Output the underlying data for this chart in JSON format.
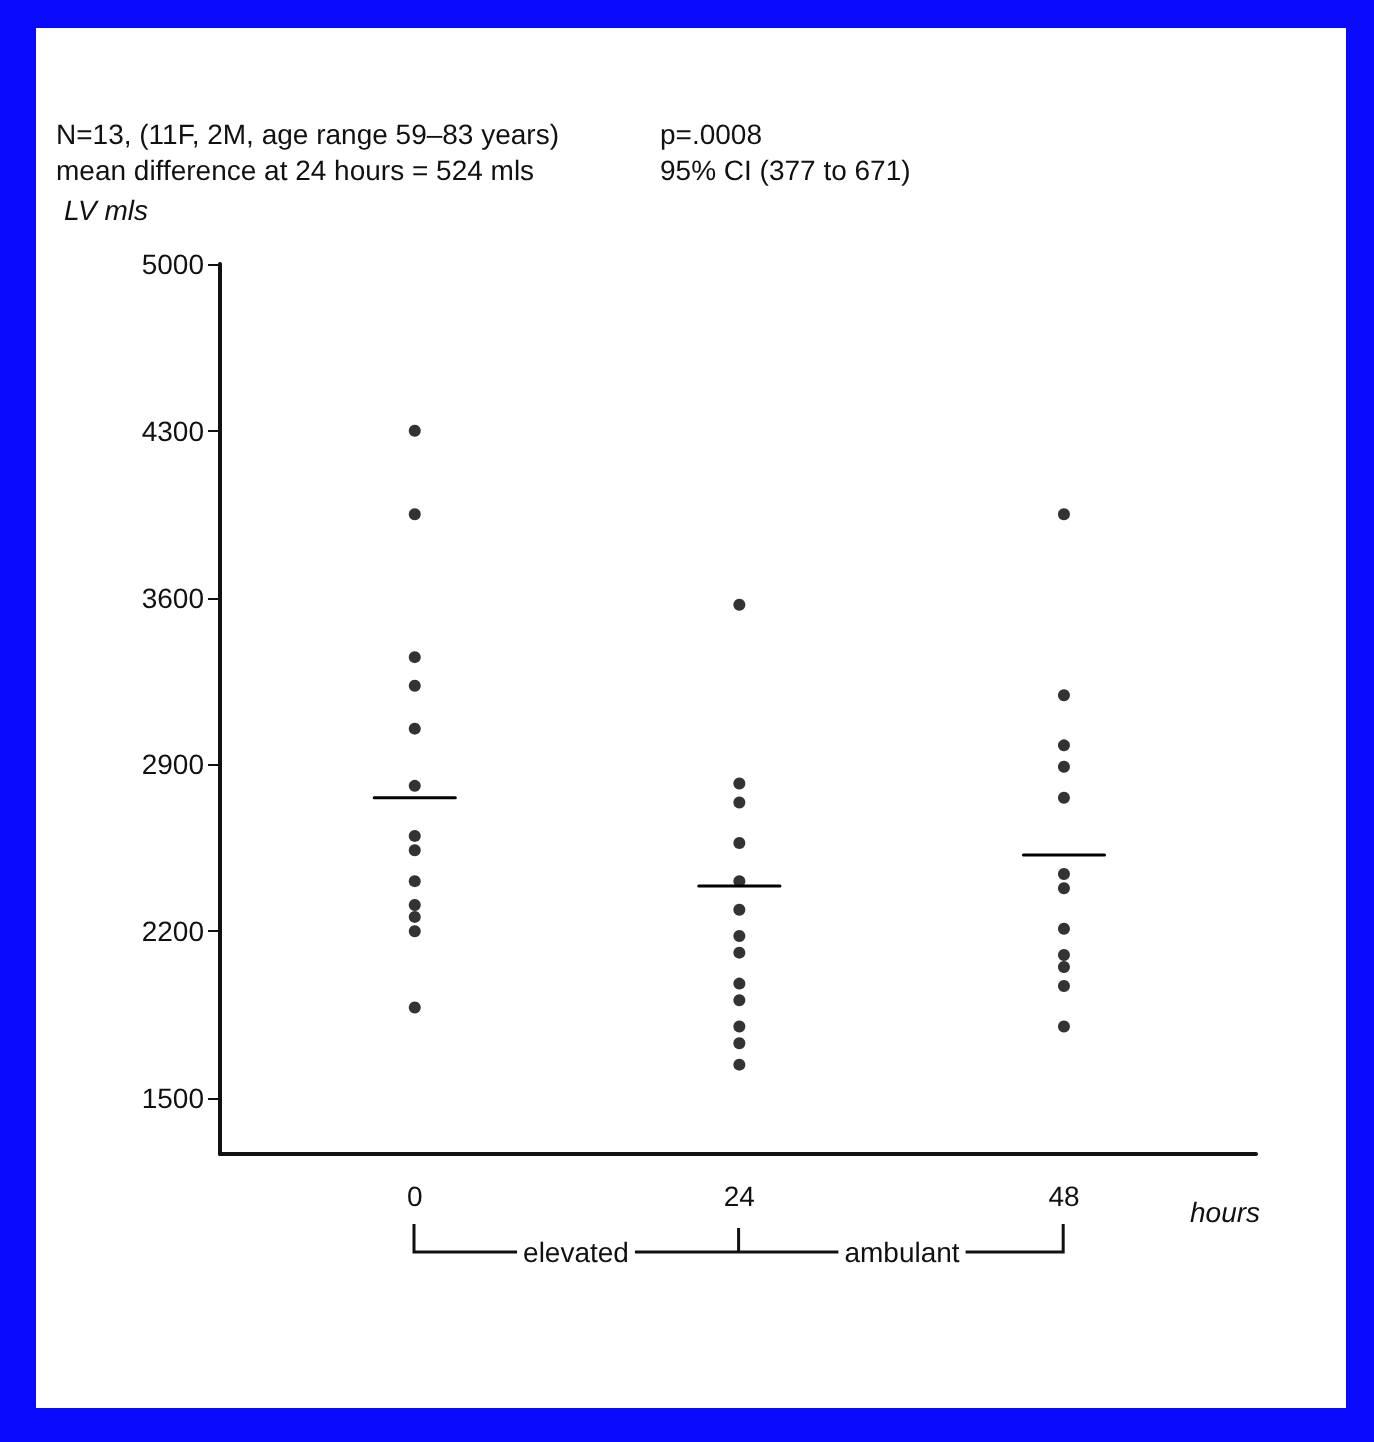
{
  "chart_data": {
    "type": "scatter",
    "title": "N=13, (11F, 2M, age range 59–83 years)",
    "subtitle": "mean difference at 24 hours = 524 mls",
    "annotations": [
      "p=.0008",
      "95% CI (377 to 671)",
      "elevated",
      "ambulant"
    ],
    "ylabel": "LV mls",
    "xlabel": "hours",
    "xlim": [
      -14.4,
      62.2
    ],
    "xticks": [
      0,
      24,
      48
    ],
    "ylim": [
      1265,
      5000
    ],
    "yticks": [
      1500,
      2200,
      2900,
      3600,
      4300,
      5000
    ],
    "grid": false,
    "marker": "circle",
    "series": [
      {
        "type": "scatter",
        "color": "#000000",
        "x": [
          0,
          0,
          0,
          0,
          0,
          0,
          0,
          0,
          0,
          0,
          0,
          0,
          0
        ],
        "values": [
          4300,
          3950,
          3350,
          3230,
          3050,
          2810,
          2600,
          2540,
          2410,
          2310,
          2260,
          2200,
          1880
        ]
      },
      {
        "type": "scatter",
        "color": "#000000",
        "x": [
          24,
          24,
          24,
          24,
          24,
          24,
          24,
          24,
          24,
          24,
          24,
          24,
          24
        ],
        "values": [
          3570,
          2820,
          2740,
          2570,
          2410,
          2290,
          2180,
          2110,
          1980,
          1910,
          1800,
          1730,
          1640
        ]
      },
      {
        "type": "scatter",
        "color": "#000000",
        "x": [
          48,
          48,
          48,
          48,
          48,
          48,
          48,
          48,
          48,
          48,
          48,
          48
        ],
        "values": [
          3950,
          3190,
          2980,
          2890,
          2760,
          2440,
          2380,
          2210,
          2100,
          2050,
          1970,
          1800
        ]
      },
      {
        "type": "line",
        "color": "#000000",
        "marker": "none",
        "line_style": "solid",
        "x": [
          -3,
          3
        ],
        "values": [
          2760,
          2760
        ]
      },
      {
        "type": "line",
        "color": "#000000",
        "marker": "none",
        "line_style": "solid",
        "x": [
          21,
          27
        ],
        "values": [
          2390,
          2390
        ]
      },
      {
        "type": "line",
        "color": "#000000",
        "marker": "none",
        "line_style": "solid",
        "x": [
          45,
          51
        ],
        "values": [
          2520,
          2520
        ]
      }
    ]
  }
}
